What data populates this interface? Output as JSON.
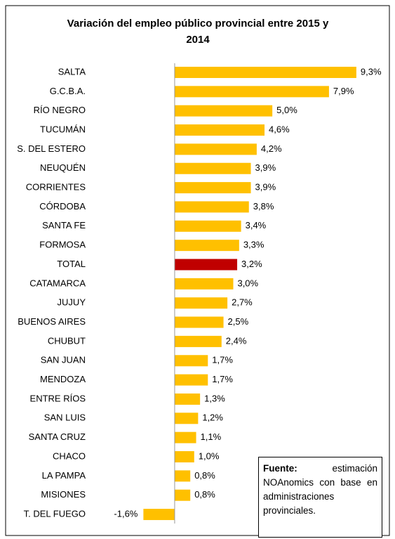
{
  "chart_data": {
    "type": "hbar",
    "title": "Variación del empleo público provincial entre 2015 y 2014",
    "categories": [
      "SALTA",
      "G.C.B.A.",
      "RÍO NEGRO",
      "TUCUMÁN",
      "S. DEL ESTERO",
      "NEUQUÉN",
      "CORRIENTES",
      "CÓRDOBA",
      "SANTA FE",
      "FORMOSA",
      "TOTAL",
      "CATAMARCA",
      "JUJUY",
      "BUENOS AIRES",
      "CHUBUT",
      "SAN JUAN",
      "MENDOZA",
      "ENTRE RÍOS",
      "SAN LUIS",
      "SANTA CRUZ",
      "CHACO",
      "LA PAMPA",
      "MISIONES",
      "T. DEL FUEGO"
    ],
    "values": [
      9.3,
      7.9,
      5.0,
      4.6,
      4.2,
      3.9,
      3.9,
      3.8,
      3.4,
      3.3,
      3.2,
      3.0,
      2.7,
      2.5,
      2.4,
      1.7,
      1.7,
      1.3,
      1.2,
      1.1,
      1.0,
      0.8,
      0.8,
      -1.6
    ],
    "value_labels": [
      "9,3%",
      "7,9%",
      "5,0%",
      "4,6%",
      "4,2%",
      "3,9%",
      "3,9%",
      "3,8%",
      "3,4%",
      "3,3%",
      "3,2%",
      "3,0%",
      "2,7%",
      "2,5%",
      "2,4%",
      "1,7%",
      "1,7%",
      "1,3%",
      "1,2%",
      "1,1%",
      "1,0%",
      "0,8%",
      "0,8%",
      "-1,6%"
    ],
    "colors": [
      "#FFC000",
      "#FFC000",
      "#FFC000",
      "#FFC000",
      "#FFC000",
      "#FFC000",
      "#FFC000",
      "#FFC000",
      "#FFC000",
      "#FFC000",
      "#C00000",
      "#FFC000",
      "#FFC000",
      "#FFC000",
      "#FFC000",
      "#FFC000",
      "#FFC000",
      "#FFC000",
      "#FFC000",
      "#FFC000",
      "#FFC000",
      "#FFC000",
      "#FFC000",
      "#FFC000"
    ],
    "xlim": [
      -3,
      10
    ],
    "note": {
      "label": "Fuente:",
      "text": "estimación NOAnomics con base en administraciones provinciales."
    }
  }
}
